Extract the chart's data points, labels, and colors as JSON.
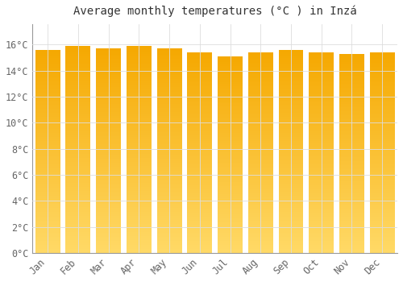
{
  "title": "Average monthly temperatures (°C ) in Inzá",
  "months": [
    "Jan",
    "Feb",
    "Mar",
    "Apr",
    "May",
    "Jun",
    "Jul",
    "Aug",
    "Sep",
    "Oct",
    "Nov",
    "Dec"
  ],
  "values": [
    15.6,
    15.9,
    15.7,
    15.9,
    15.7,
    15.4,
    15.1,
    15.4,
    15.6,
    15.4,
    15.3,
    15.4
  ],
  "ylim": [
    0,
    17.6
  ],
  "yticks": [
    0,
    2,
    4,
    6,
    8,
    10,
    12,
    14,
    16
  ],
  "bar_color_top": "#F5A800",
  "bar_color_bottom": "#FFD966",
  "background_color": "#FFFFFF",
  "grid_color": "#DDDDDD",
  "title_fontsize": 10,
  "tick_fontsize": 8.5
}
